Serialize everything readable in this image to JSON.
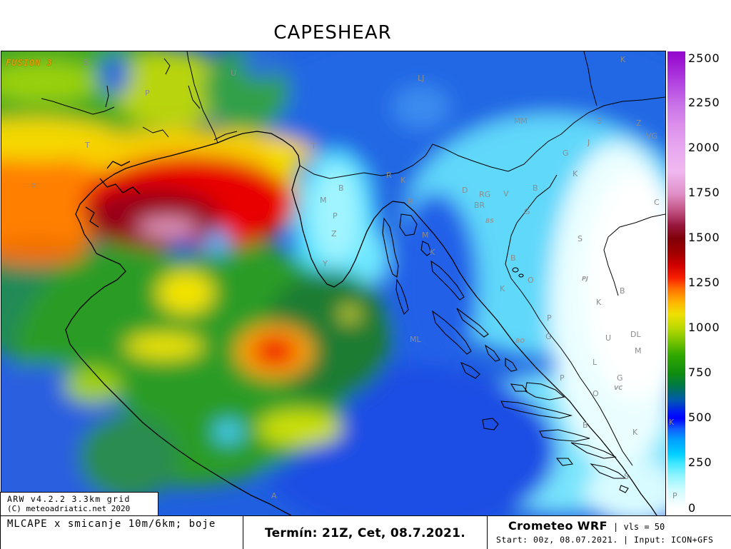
{
  "title": "CAPESHEAR",
  "map": {
    "badge": "FUSION 3",
    "place_labels": [
      "B",
      "U",
      "LJ",
      "K",
      "P",
      "T",
      "P",
      "T",
      "MM",
      "S",
      "Z",
      "VG",
      "J",
      "G",
      "K",
      "R",
      "K",
      "B",
      "D",
      "RG",
      "V",
      "B",
      "M",
      "R",
      "BR",
      "G",
      "C",
      "P",
      "Z",
      "M",
      "S",
      "B",
      "K",
      "Y",
      "O",
      "K",
      "B",
      "K",
      "P",
      "G",
      "U",
      "DL",
      "M",
      "ML",
      "L",
      "G",
      "P",
      "O",
      "K",
      "B",
      "K",
      "S",
      "P",
      "A",
      "BS",
      "PJ",
      "BO",
      "VC"
    ],
    "colors": {
      "coastline": "#000000",
      "place_label": "#8c8c8c",
      "badge": "#e0a000"
    }
  },
  "colorbar": {
    "ticks": [
      "2500",
      "2250",
      "2000",
      "1750",
      "1500",
      "1250",
      "1000",
      "750",
      "500",
      "250",
      "0"
    ],
    "range": [
      0,
      2500
    ],
    "stops": [
      {
        "value": 2600,
        "color": "#8a00c8"
      },
      {
        "value": 2500,
        "color": "#9a10d0"
      },
      {
        "value": 2375,
        "color": "#b040e0"
      },
      {
        "value": 2250,
        "color": "#c870e8"
      },
      {
        "value": 2125,
        "color": "#dc90ec"
      },
      {
        "value": 2000,
        "color": "#e8a8f0"
      },
      {
        "value": 1875,
        "color": "#f0b8f0"
      },
      {
        "value": 1750,
        "color": "#e090c8"
      },
      {
        "value": 1650,
        "color": "#c05080"
      },
      {
        "value": 1575,
        "color": "#981840"
      },
      {
        "value": 1500,
        "color": "#800008"
      },
      {
        "value": 1420,
        "color": "#a00000"
      },
      {
        "value": 1350,
        "color": "#d00000"
      },
      {
        "value": 1280,
        "color": "#f82000"
      },
      {
        "value": 1220,
        "color": "#ff7000"
      },
      {
        "value": 1150,
        "color": "#ffb000"
      },
      {
        "value": 1080,
        "color": "#f0e000"
      },
      {
        "value": 1000,
        "color": "#b8d800"
      },
      {
        "value": 920,
        "color": "#70c000"
      },
      {
        "value": 850,
        "color": "#30a800"
      },
      {
        "value": 750,
        "color": "#108c10"
      },
      {
        "value": 680,
        "color": "#007848"
      },
      {
        "value": 600,
        "color": "#0058b0"
      },
      {
        "value": 540,
        "color": "#0020f0"
      },
      {
        "value": 500,
        "color": "#0000ff"
      },
      {
        "value": 440,
        "color": "#1060ff"
      },
      {
        "value": 380,
        "color": "#00a0ff"
      },
      {
        "value": 300,
        "color": "#00d0ff"
      },
      {
        "value": 250,
        "color": "#40e8ff"
      },
      {
        "value": 180,
        "color": "#90f4ff"
      },
      {
        "value": 100,
        "color": "#d0fcff"
      },
      {
        "value": 0,
        "color": "#ffffff"
      }
    ]
  },
  "info_box": {
    "line1": "ARW v4.2.2 3.3km grid",
    "line2": "(C) meteoadriatic.net 2020"
  },
  "footer": {
    "variable": "MLCAPE x smicanje 10m/6km; boje",
    "valid_time": "Termín: 21Z, Cet, 08.7.2021.",
    "model": "Crometeo WRF",
    "levels": "| vls = 50",
    "run_info": "Start: 00z, 08.07.2021. | Input: ICON+GFS"
  }
}
